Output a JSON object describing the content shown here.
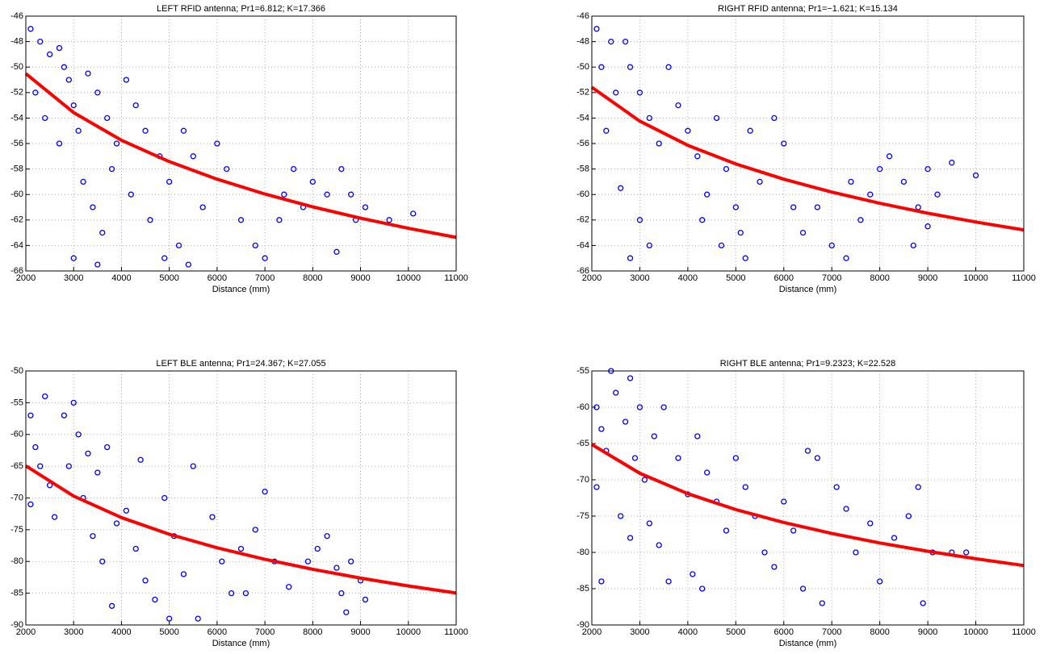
{
  "chart_data": [
    {
      "type": "scatter",
      "title": "LEFT RFID antenna; Pr1=6.812; K=17.366",
      "xlabel": "Distance (mm)",
      "xlim": [
        2000,
        11000
      ],
      "xticks": [
        2000,
        3000,
        4000,
        5000,
        6000,
        7000,
        8000,
        9000,
        10000,
        11000
      ],
      "ylim": [
        -66,
        -46
      ],
      "yticks": [
        -66,
        -64,
        -62,
        -60,
        -58,
        -56,
        -54,
        -52,
        -50,
        -48,
        -46
      ],
      "grid": true,
      "series": [
        {
          "type": "scatter",
          "color": "#0000ff",
          "x": [
            2100,
            2300,
            2500,
            2700,
            2800,
            2200,
            2400,
            2900,
            3000,
            3100,
            3300,
            3500,
            3700,
            3900,
            4100,
            4300,
            4500,
            3200,
            3400,
            3600,
            3000,
            3800,
            4200,
            4600,
            4800,
            5000,
            5300,
            5500,
            5700,
            6000,
            6200,
            5200,
            5400,
            4900,
            6500,
            6800,
            7000,
            7400,
            7600,
            7800,
            8000,
            8300,
            8600,
            8800,
            9100,
            8900,
            9600,
            10100,
            8500,
            7300,
            3500,
            2700
          ],
          "values": [
            -47,
            -48,
            -49,
            -48.5,
            -50,
            -52,
            -54,
            -51,
            -53,
            -55,
            -50.5,
            -52,
            -54,
            -56,
            -51,
            -53,
            -55,
            -59,
            -61,
            -63,
            -65,
            -58,
            -60,
            -62,
            -57,
            -59,
            -55,
            -57,
            -61,
            -56,
            -58,
            -64,
            -65.5,
            -65,
            -62,
            -64,
            -65,
            -60,
            -58,
            -61,
            -59,
            -60,
            -58,
            -60,
            -61,
            -62,
            -62,
            -61.5,
            -64.5,
            -62,
            -65.5,
            -56
          ]
        },
        {
          "type": "line",
          "color": "#ff0000",
          "x": [
            2000,
            3000,
            4000,
            5000,
            6000,
            7000,
            8000,
            9000,
            10000,
            11000
          ],
          "values": [
            -50.51,
            -53.57,
            -55.74,
            -57.42,
            -58.8,
            -59.96,
            -60.97,
            -61.86,
            -62.65,
            -63.37
          ]
        }
      ]
    },
    {
      "type": "scatter",
      "title": "RIGHT RFID antenna; Pr1=−1.621; K=15.134",
      "xlabel": "Distance (mm)",
      "xlim": [
        2000,
        11000
      ],
      "xticks": [
        2000,
        3000,
        4000,
        5000,
        6000,
        7000,
        8000,
        9000,
        10000,
        11000
      ],
      "ylim": [
        -66,
        -46
      ],
      "yticks": [
        -66,
        -64,
        -62,
        -60,
        -58,
        -56,
        -54,
        -52,
        -50,
        -48,
        -46
      ],
      "grid": true,
      "series": [
        {
          "type": "scatter",
          "color": "#0000ff",
          "x": [
            2100,
            2400,
            2700,
            2200,
            2500,
            2800,
            2300,
            3000,
            3200,
            3400,
            3600,
            3800,
            2600,
            3000,
            3200,
            2800,
            4000,
            4200,
            4400,
            4600,
            4800,
            4300,
            4700,
            5000,
            5100,
            5200,
            5300,
            5500,
            5800,
            6000,
            6200,
            6400,
            6700,
            7000,
            7300,
            7600,
            7800,
            8000,
            8200,
            8500,
            8800,
            9000,
            9200,
            9500,
            10000,
            8700,
            9000,
            7400
          ],
          "values": [
            -47,
            -48,
            -48,
            -50,
            -52,
            -50,
            -55,
            -52,
            -54,
            -56,
            -50,
            -53,
            -59.5,
            -62,
            -64,
            -65,
            -55,
            -57,
            -60,
            -54,
            -58,
            -62,
            -64,
            -61,
            -63,
            -65,
            -55,
            -59,
            -54,
            -56,
            -61,
            -63,
            -61,
            -64,
            -65,
            -62,
            -60,
            -58,
            -57,
            -59,
            -61,
            -58,
            -60,
            -57.5,
            -58.5,
            -64,
            -62.5,
            -59
          ]
        },
        {
          "type": "line",
          "color": "#ff0000",
          "x": [
            2000,
            3000,
            4000,
            5000,
            6000,
            7000,
            8000,
            9000,
            10000,
            11000
          ],
          "values": [
            -51.58,
            -54.24,
            -56.14,
            -57.6,
            -58.8,
            -59.81,
            -60.69,
            -61.47,
            -62.16,
            -62.78
          ]
        }
      ]
    },
    {
      "type": "scatter",
      "title": "LEFT BLE antenna; Pr1=24.367; K=27.055",
      "xlabel": "Distance (mm)",
      "xlim": [
        2000,
        11000
      ],
      "xticks": [
        2000,
        3000,
        4000,
        5000,
        6000,
        7000,
        8000,
        9000,
        10000,
        11000
      ],
      "ylim": [
        -90,
        -50
      ],
      "yticks": [
        -90,
        -85,
        -80,
        -75,
        -70,
        -65,
        -60,
        -55,
        -50
      ],
      "grid": true,
      "series": [
        {
          "type": "scatter",
          "color": "#0000ff",
          "x": [
            2100,
            2200,
            2400,
            2300,
            2100,
            2500,
            2600,
            2800,
            3000,
            3100,
            2900,
            3300,
            3500,
            3700,
            3200,
            3400,
            3600,
            3800,
            3900,
            4100,
            4300,
            4500,
            4700,
            4400,
            4900,
            5100,
            5300,
            5500,
            5600,
            5000,
            5900,
            6100,
            6300,
            6500,
            6800,
            7000,
            7200,
            7500,
            7900,
            8100,
            8300,
            8500,
            8600,
            8700,
            9000,
            9100,
            8800,
            6600
          ],
          "values": [
            -57,
            -62,
            -54,
            -65,
            -71,
            -68,
            -73,
            -57,
            -55,
            -60,
            -65,
            -63,
            -66,
            -62,
            -70,
            -76,
            -80,
            -87,
            -74,
            -72,
            -78,
            -83,
            -86,
            -64,
            -70,
            -76,
            -82,
            -65,
            -89,
            -89,
            -73,
            -80,
            -85,
            -78,
            -75,
            -69,
            -80,
            -84,
            -80,
            -78,
            -76,
            -81,
            -85,
            -88,
            -83,
            -86,
            -80,
            -85
          ]
        },
        {
          "type": "line",
          "color": "#ff0000",
          "x": [
            2000,
            3000,
            4000,
            5000,
            6000,
            7000,
            8000,
            9000,
            10000,
            11000
          ],
          "values": [
            -64.94,
            -69.71,
            -73.09,
            -75.71,
            -77.85,
            -79.66,
            -81.23,
            -82.62,
            -83.85,
            -84.97
          ]
        }
      ]
    },
    {
      "type": "scatter",
      "title": "RIGHT BLE antenna; Pr1=9.2323; K=22.528",
      "xlabel": "Distance (mm)",
      "xlim": [
        2000,
        11000
      ],
      "xticks": [
        2000,
        3000,
        4000,
        5000,
        6000,
        7000,
        8000,
        9000,
        10000,
        11000
      ],
      "ylim": [
        -90,
        -55
      ],
      "yticks": [
        -90,
        -85,
        -80,
        -75,
        -70,
        -65,
        -60,
        -55
      ],
      "grid": true,
      "series": [
        {
          "type": "scatter",
          "color": "#0000ff",
          "x": [
            2100,
            2200,
            2400,
            2300,
            2100,
            2200,
            2500,
            2700,
            2800,
            3000,
            2900,
            3100,
            3300,
            3500,
            2600,
            2800,
            3200,
            3400,
            3600,
            3800,
            4000,
            4200,
            4400,
            4100,
            4300,
            4600,
            4800,
            5000,
            5200,
            5400,
            5600,
            5800,
            6000,
            6200,
            6400,
            6700,
            6800,
            6500,
            7100,
            7300,
            7500,
            7800,
            8000,
            8300,
            8600,
            8800,
            8900,
            9100,
            9500,
            9800
          ],
          "values": [
            -60,
            -63,
            -55,
            -66,
            -71,
            -84,
            -58,
            -62,
            -56,
            -60,
            -67,
            -70,
            -64,
            -60,
            -75,
            -78,
            -76,
            -79,
            -84,
            -67,
            -72,
            -64,
            -69,
            -83,
            -85,
            -73,
            -77,
            -67,
            -71,
            -75,
            -80,
            -82,
            -73,
            -77,
            -85,
            -67,
            -87,
            -66,
            -71,
            -74,
            -80,
            -76,
            -84,
            -78,
            -75,
            -71,
            -87,
            -80,
            -80,
            -80
          ]
        },
        {
          "type": "line",
          "color": "#ff0000",
          "x": [
            2000,
            3000,
            4000,
            5000,
            6000,
            7000,
            8000,
            9000,
            10000,
            11000
          ],
          "values": [
            -65.13,
            -69.1,
            -71.91,
            -74.1,
            -75.88,
            -77.39,
            -78.7,
            -79.85,
            -80.88,
            -81.81
          ]
        }
      ]
    }
  ]
}
